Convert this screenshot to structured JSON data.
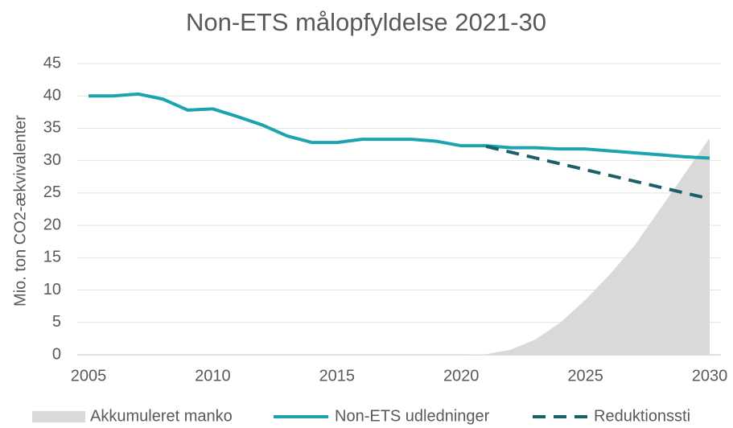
{
  "chart_data": {
    "type": "line",
    "title": "Non-ETS målopfyldelse 2021-30",
    "y_label": "Mio. ton CO2-ækvivalenter",
    "x": [
      2005,
      2006,
      2007,
      2008,
      2009,
      2010,
      2011,
      2012,
      2013,
      2014,
      2015,
      2016,
      2017,
      2018,
      2019,
      2020,
      2021,
      2022,
      2023,
      2024,
      2025,
      2026,
      2027,
      2028,
      2029,
      2030
    ],
    "series": [
      {
        "name": "Akkumuleret manko",
        "color": "#d9d9d9",
        "style": "area",
        "values": [
          null,
          null,
          null,
          null,
          null,
          null,
          null,
          null,
          null,
          null,
          null,
          null,
          null,
          null,
          null,
          0,
          0.1,
          0.8,
          2.4,
          5,
          8.5,
          12.5,
          17,
          22.5,
          28,
          33.5
        ]
      },
      {
        "name": "Non-ETS udledninger",
        "color": "#1ba3b0",
        "style": "solid",
        "values": [
          40,
          40,
          40.3,
          39.5,
          37.8,
          38,
          36.8,
          35.5,
          33.8,
          32.8,
          32.8,
          33.3,
          33.3,
          33.3,
          33,
          32.3,
          32.3,
          32,
          32,
          31.8,
          31.8,
          31.5,
          31.2,
          30.9,
          30.6,
          30.4
        ]
      },
      {
        "name": "Reduktionssti",
        "color": "#1c5f68",
        "style": "dashed",
        "values": [
          null,
          null,
          null,
          null,
          null,
          null,
          null,
          null,
          null,
          null,
          null,
          null,
          null,
          null,
          null,
          null,
          32.2,
          31.3,
          30.4,
          29.5,
          28.6,
          27.7,
          26.8,
          25.9,
          25,
          24.1
        ]
      }
    ],
    "xlim": [
      2005,
      2030
    ],
    "xticks": [
      2005,
      2010,
      2015,
      2020,
      2025,
      2030
    ],
    "ylim": [
      0,
      45
    ],
    "yticks": [
      0,
      5,
      10,
      15,
      20,
      25,
      30,
      35,
      40,
      45
    ],
    "grid": true,
    "legend": "bottom"
  }
}
